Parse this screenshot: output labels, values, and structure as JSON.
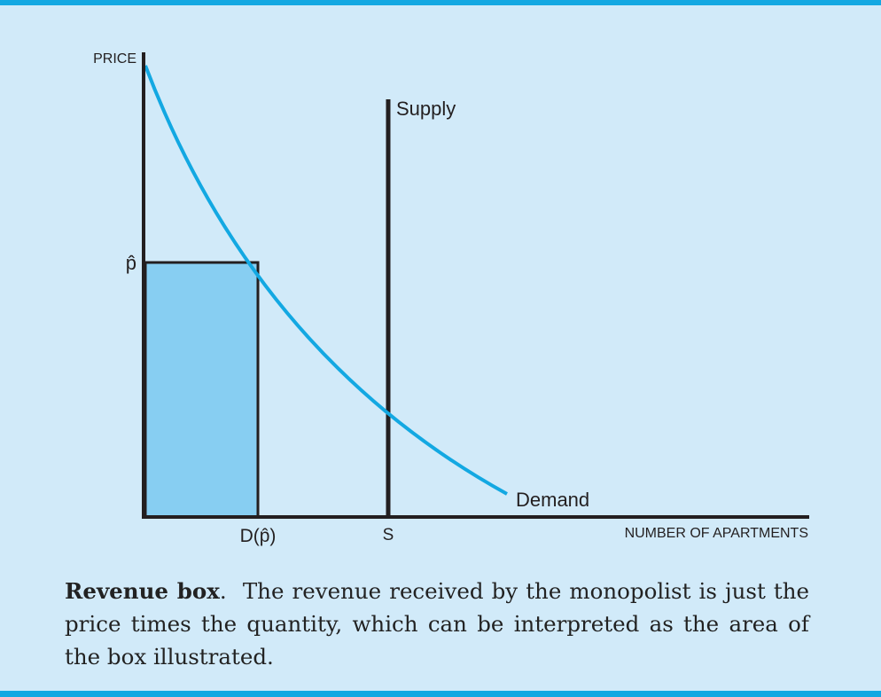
{
  "diagram": {
    "y_axis_label": "PRICE",
    "x_axis_label": "NUMBER OF APARTMENTS",
    "supply_label": "Supply",
    "demand_label": "Demand",
    "price_tick_label": "p̂",
    "quantity_tick_label": "D(p̂)",
    "supply_tick_label": "S",
    "colors": {
      "background": "#d1eaf9",
      "curve": "#13a8e2",
      "revenue_box_fill": "#87cef2",
      "axis": "#231f20",
      "rule": "#13a8e2"
    }
  },
  "caption": {
    "title": "Revenue box",
    "text": "The revenue received by the monopolist is just the price times the quantity, which can be interpreted as the area of the box illustrated."
  }
}
